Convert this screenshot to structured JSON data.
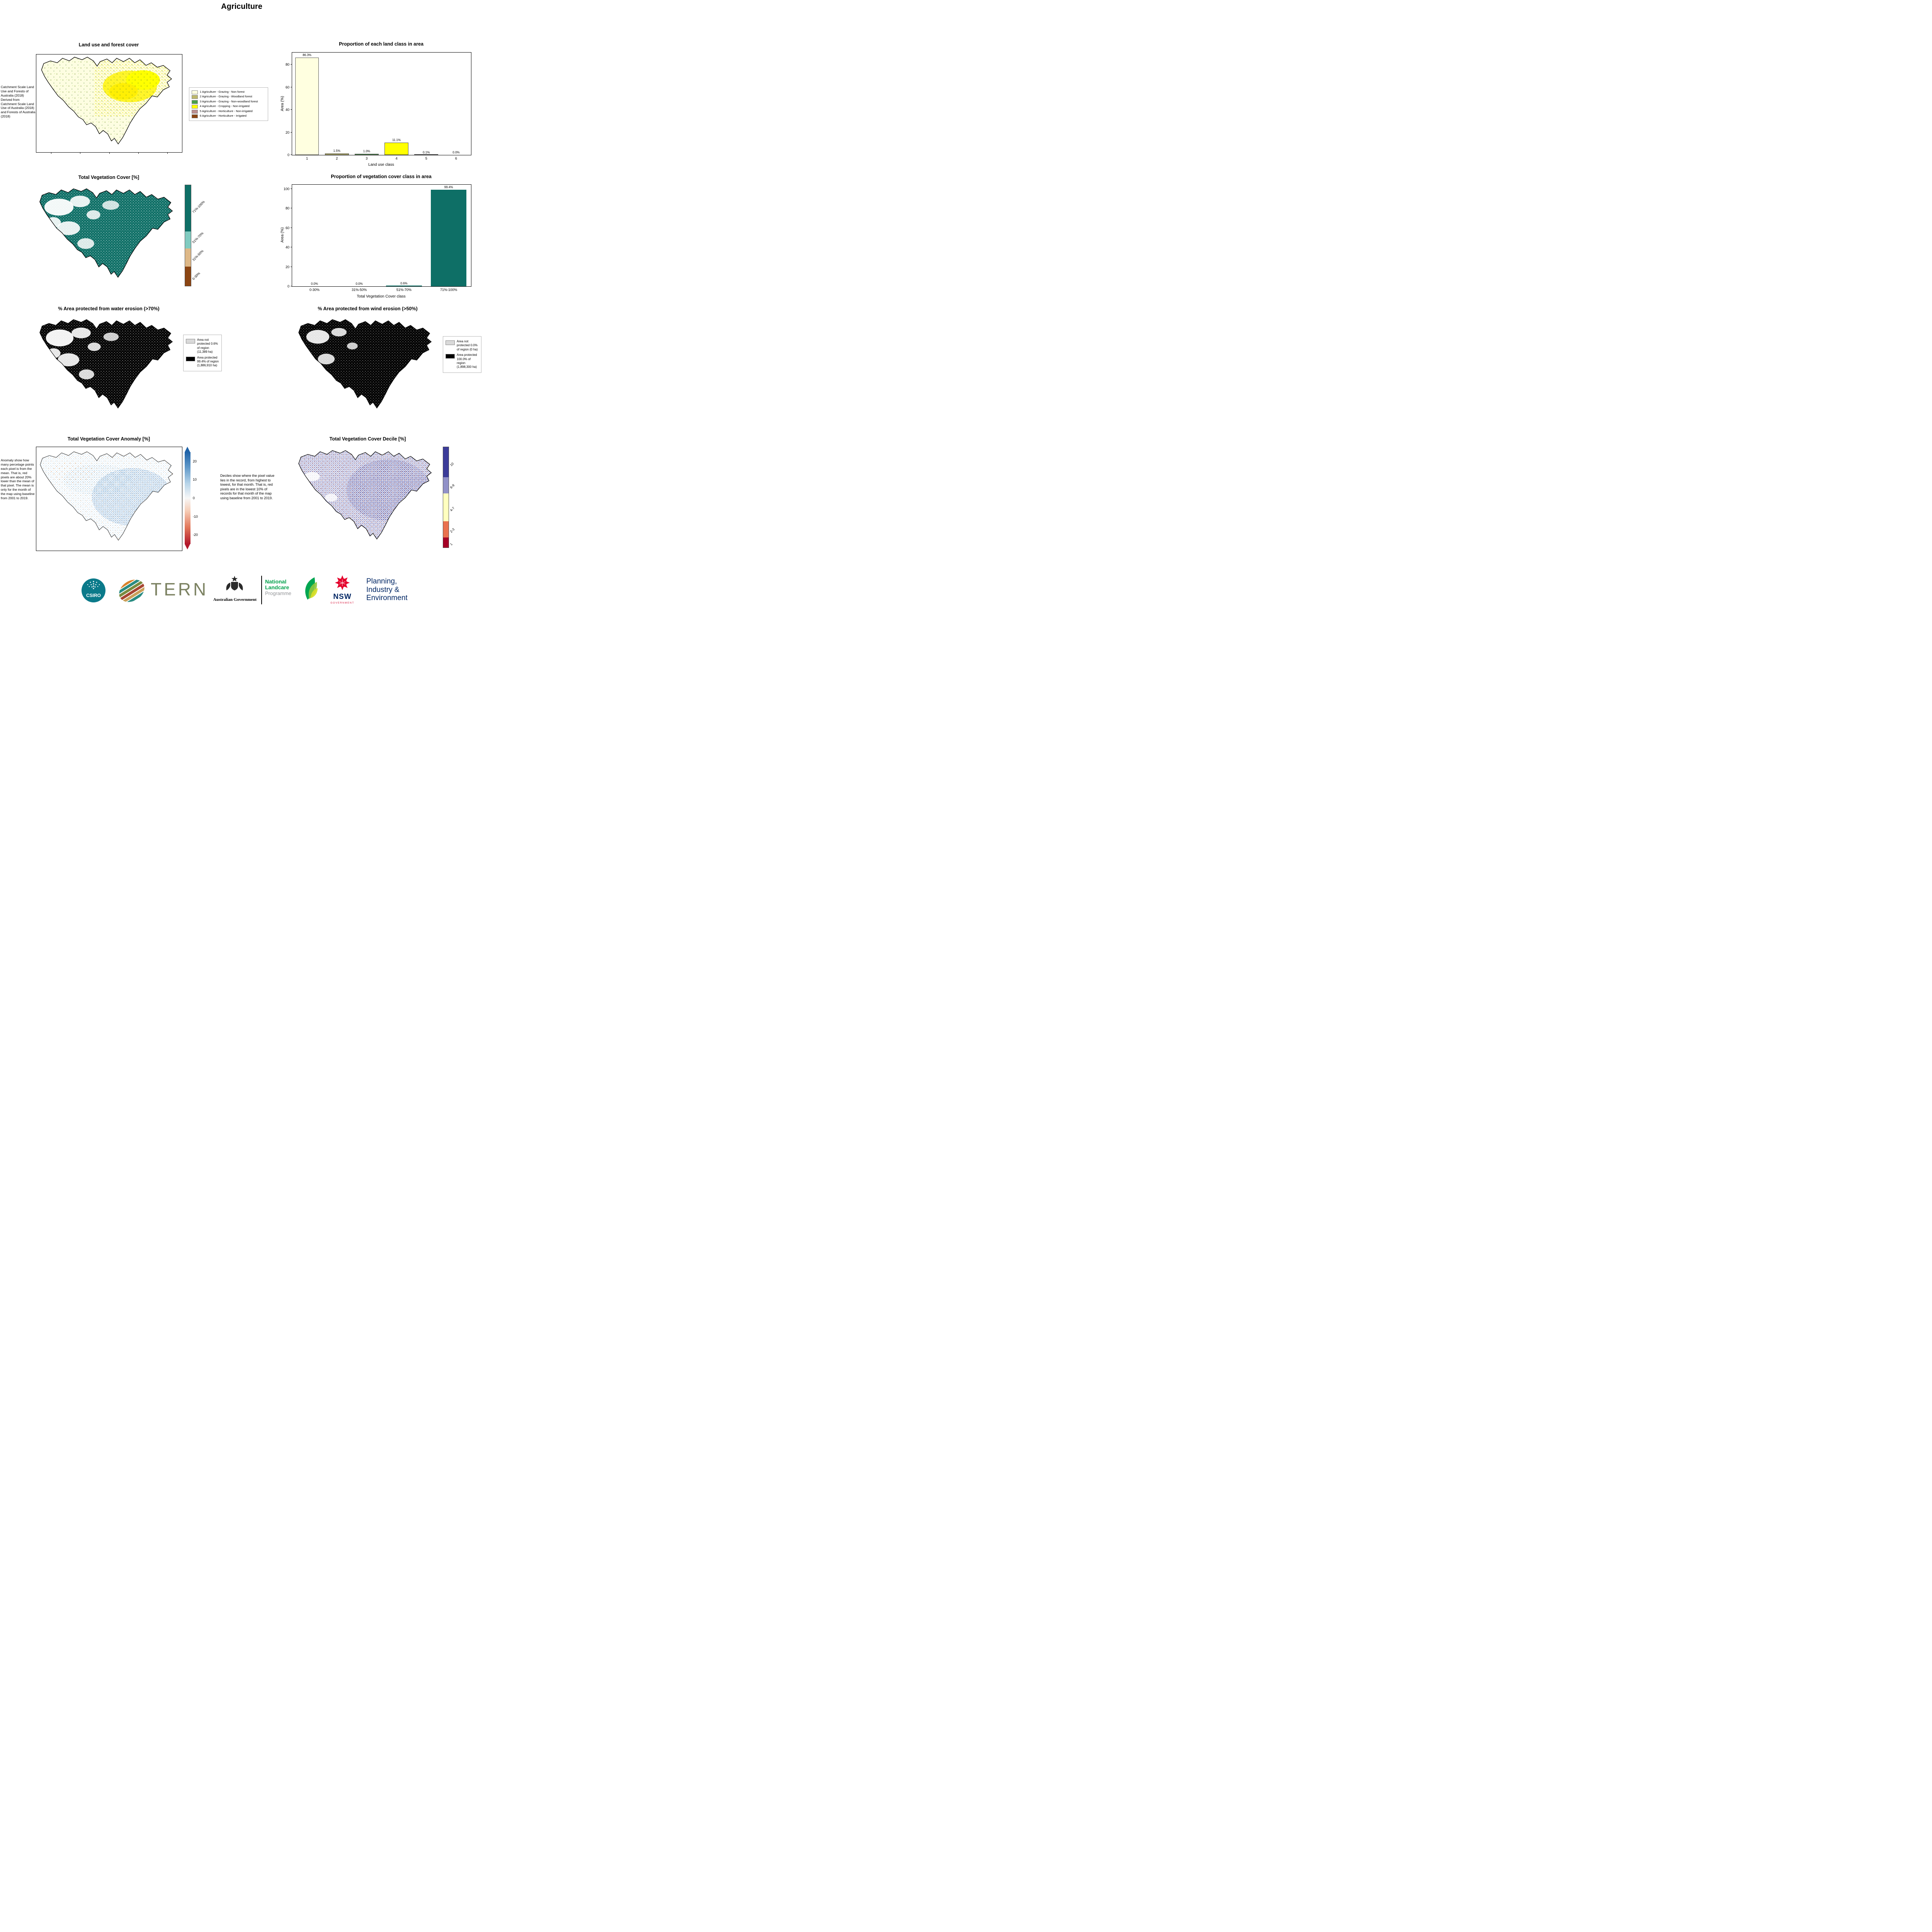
{
  "page": {
    "title": "Agriculture"
  },
  "land_use": {
    "title": "Land use and forest cover",
    "caption": "Catchment Scale Land Use and Forests of Australia (2018) Derived from Catchment Scale Land Use of Australia (2018) and Forests of Australia (2018)",
    "legend": [
      {
        "color": "#ffffe0",
        "label": "1 Agriculture - Grazing - Non forest"
      },
      {
        "color": "#bdb76b",
        "label": "2 Agriculture - Grazing - Woodland forest"
      },
      {
        "color": "#4aa04a",
        "label": "3 Agriculture - Grazing - Non-woodland forest"
      },
      {
        "color": "#ffff00",
        "label": "4 Agriculture - Cropping - Non-irrigated"
      },
      {
        "color": "#bc8f8f",
        "label": "5 Agriculture - Horticulture - Non-irrigated"
      },
      {
        "color": "#8b4513",
        "label": "6 Agriculture - Horticulture - Irrigated"
      }
    ]
  },
  "veg_cover": {
    "title": "Total Vegetation Cover [%]"
  },
  "water_erosion": {
    "title": "% Area protected from water erosion (>70%)",
    "legend": [
      {
        "color": "#d9d9d9",
        "label": "Area not protected 0.6% of region (11,389 ha)"
      },
      {
        "color": "#000000",
        "label": "Area protected 99.4% of region (1,886,910 ha)"
      }
    ]
  },
  "wind_erosion": {
    "title": "% Area protected from wind erosion (>50%)",
    "legend": [
      {
        "color": "#d9d9d9",
        "label": "Area not protected 0.0% of region (0 ha)"
      },
      {
        "color": "#000000",
        "label": "Area protected 100.0% of region (1,898,300 ha)"
      }
    ]
  },
  "anomaly": {
    "title": "Total Vegetation Cover Anomaly [%]",
    "caption": "Anomaly show how many percetage points each pixel is from the mean. That is, red pixels are about 20% lower than the mean of that pixel. The mean is only for the month of the map using baseline from 2001 to 2019.",
    "ticks": [
      {
        "label": "20",
        "pos": 10
      },
      {
        "label": "10",
        "pos": 30
      },
      {
        "label": "0",
        "pos": 50
      },
      {
        "label": "-10",
        "pos": 70
      },
      {
        "label": "-20",
        "pos": 90
      }
    ]
  },
  "decile": {
    "title": "Total Vegetation Cover Decile [%]",
    "caption": "Deciles show where the pixel value lies in the record, from highest to lowest, for that month. That is, red pixels are in the lowest 10% of records for that month of the map using baseline from 2001 to 2019."
  },
  "colorbars": {
    "veg": {
      "segments": [
        {
          "label": "71%-100%",
          "color": "#0e6f66",
          "frac": 0.46
        },
        {
          "label": "51%-70%",
          "color": "#80cbc0",
          "frac": 0.17
        },
        {
          "label": "31%-50%",
          "color": "#deb887",
          "frac": 0.18
        },
        {
          "label": "0-30%",
          "color": "#8b4513",
          "frac": 0.19
        }
      ]
    },
    "decile": {
      "segments": [
        {
          "label": "10",
          "color": "#3c3c99",
          "frac": 0.3
        },
        {
          "label": "8-9",
          "color": "#9191c7",
          "frac": 0.16
        },
        {
          "label": "4-7",
          "color": "#ffffbf",
          "frac": 0.28
        },
        {
          "label": "2-3",
          "color": "#e9714e",
          "frac": 0.16
        },
        {
          "label": "1",
          "color": "#a50026",
          "frac": 0.1
        }
      ]
    }
  },
  "chart_data": [
    {
      "type": "bar",
      "title": "Proportion of each land class in area",
      "xlabel": "Land use class",
      "ylabel": "Area (%)",
      "categories": [
        "1",
        "2",
        "3",
        "4",
        "5",
        "6"
      ],
      "values": [
        86.3,
        1.5,
        1.0,
        11.1,
        0.1,
        0.0
      ],
      "value_labels": [
        "86.3%",
        "1.5%",
        "1.0%",
        "11.1%",
        "0.1%",
        "0.0%"
      ],
      "colors": [
        "#ffffe0",
        "#bdb76b",
        "#4aa04a",
        "#ffff00",
        "#bc8f8f",
        "#8b4513"
      ],
      "edgecolor": "#555555",
      "ylim": [
        0,
        90.6
      ],
      "yticks": [
        0,
        20,
        40,
        60,
        80
      ],
      "grid": false,
      "legend_position": "none"
    },
    {
      "type": "bar",
      "title": "Proportion of vegetation cover class in area",
      "xlabel": "Total Vegetation Cover class",
      "ylabel": "Area (%)",
      "categories": [
        "0-30%",
        "31%-50%",
        "51%-70%",
        "71%-100%"
      ],
      "values": [
        0.0,
        0.0,
        0.6,
        99.4
      ],
      "value_labels": [
        "0.0%",
        "0.0%",
        "0.6%",
        "99.4%"
      ],
      "colors": [
        "#0e6f66",
        "#0e6f66",
        "#0e6f66",
        "#0e6f66"
      ],
      "edgecolor": "#0e6f66",
      "ylim": [
        0,
        104.4
      ],
      "yticks": [
        0,
        20,
        40,
        60,
        80,
        100
      ],
      "grid": false,
      "legend_position": "none"
    }
  ],
  "logos": {
    "csiro": "CSIRO",
    "tern": "TERN",
    "aus_gov": "Australian Government",
    "landcare_1": "National",
    "landcare_2": "Landcare",
    "landcare_3": "Programme",
    "nsw": "NSW",
    "nsw_sub": "GOVERNMENT",
    "planning_1": "Planning,",
    "planning_2": "Industry &",
    "planning_3": "Environment"
  }
}
